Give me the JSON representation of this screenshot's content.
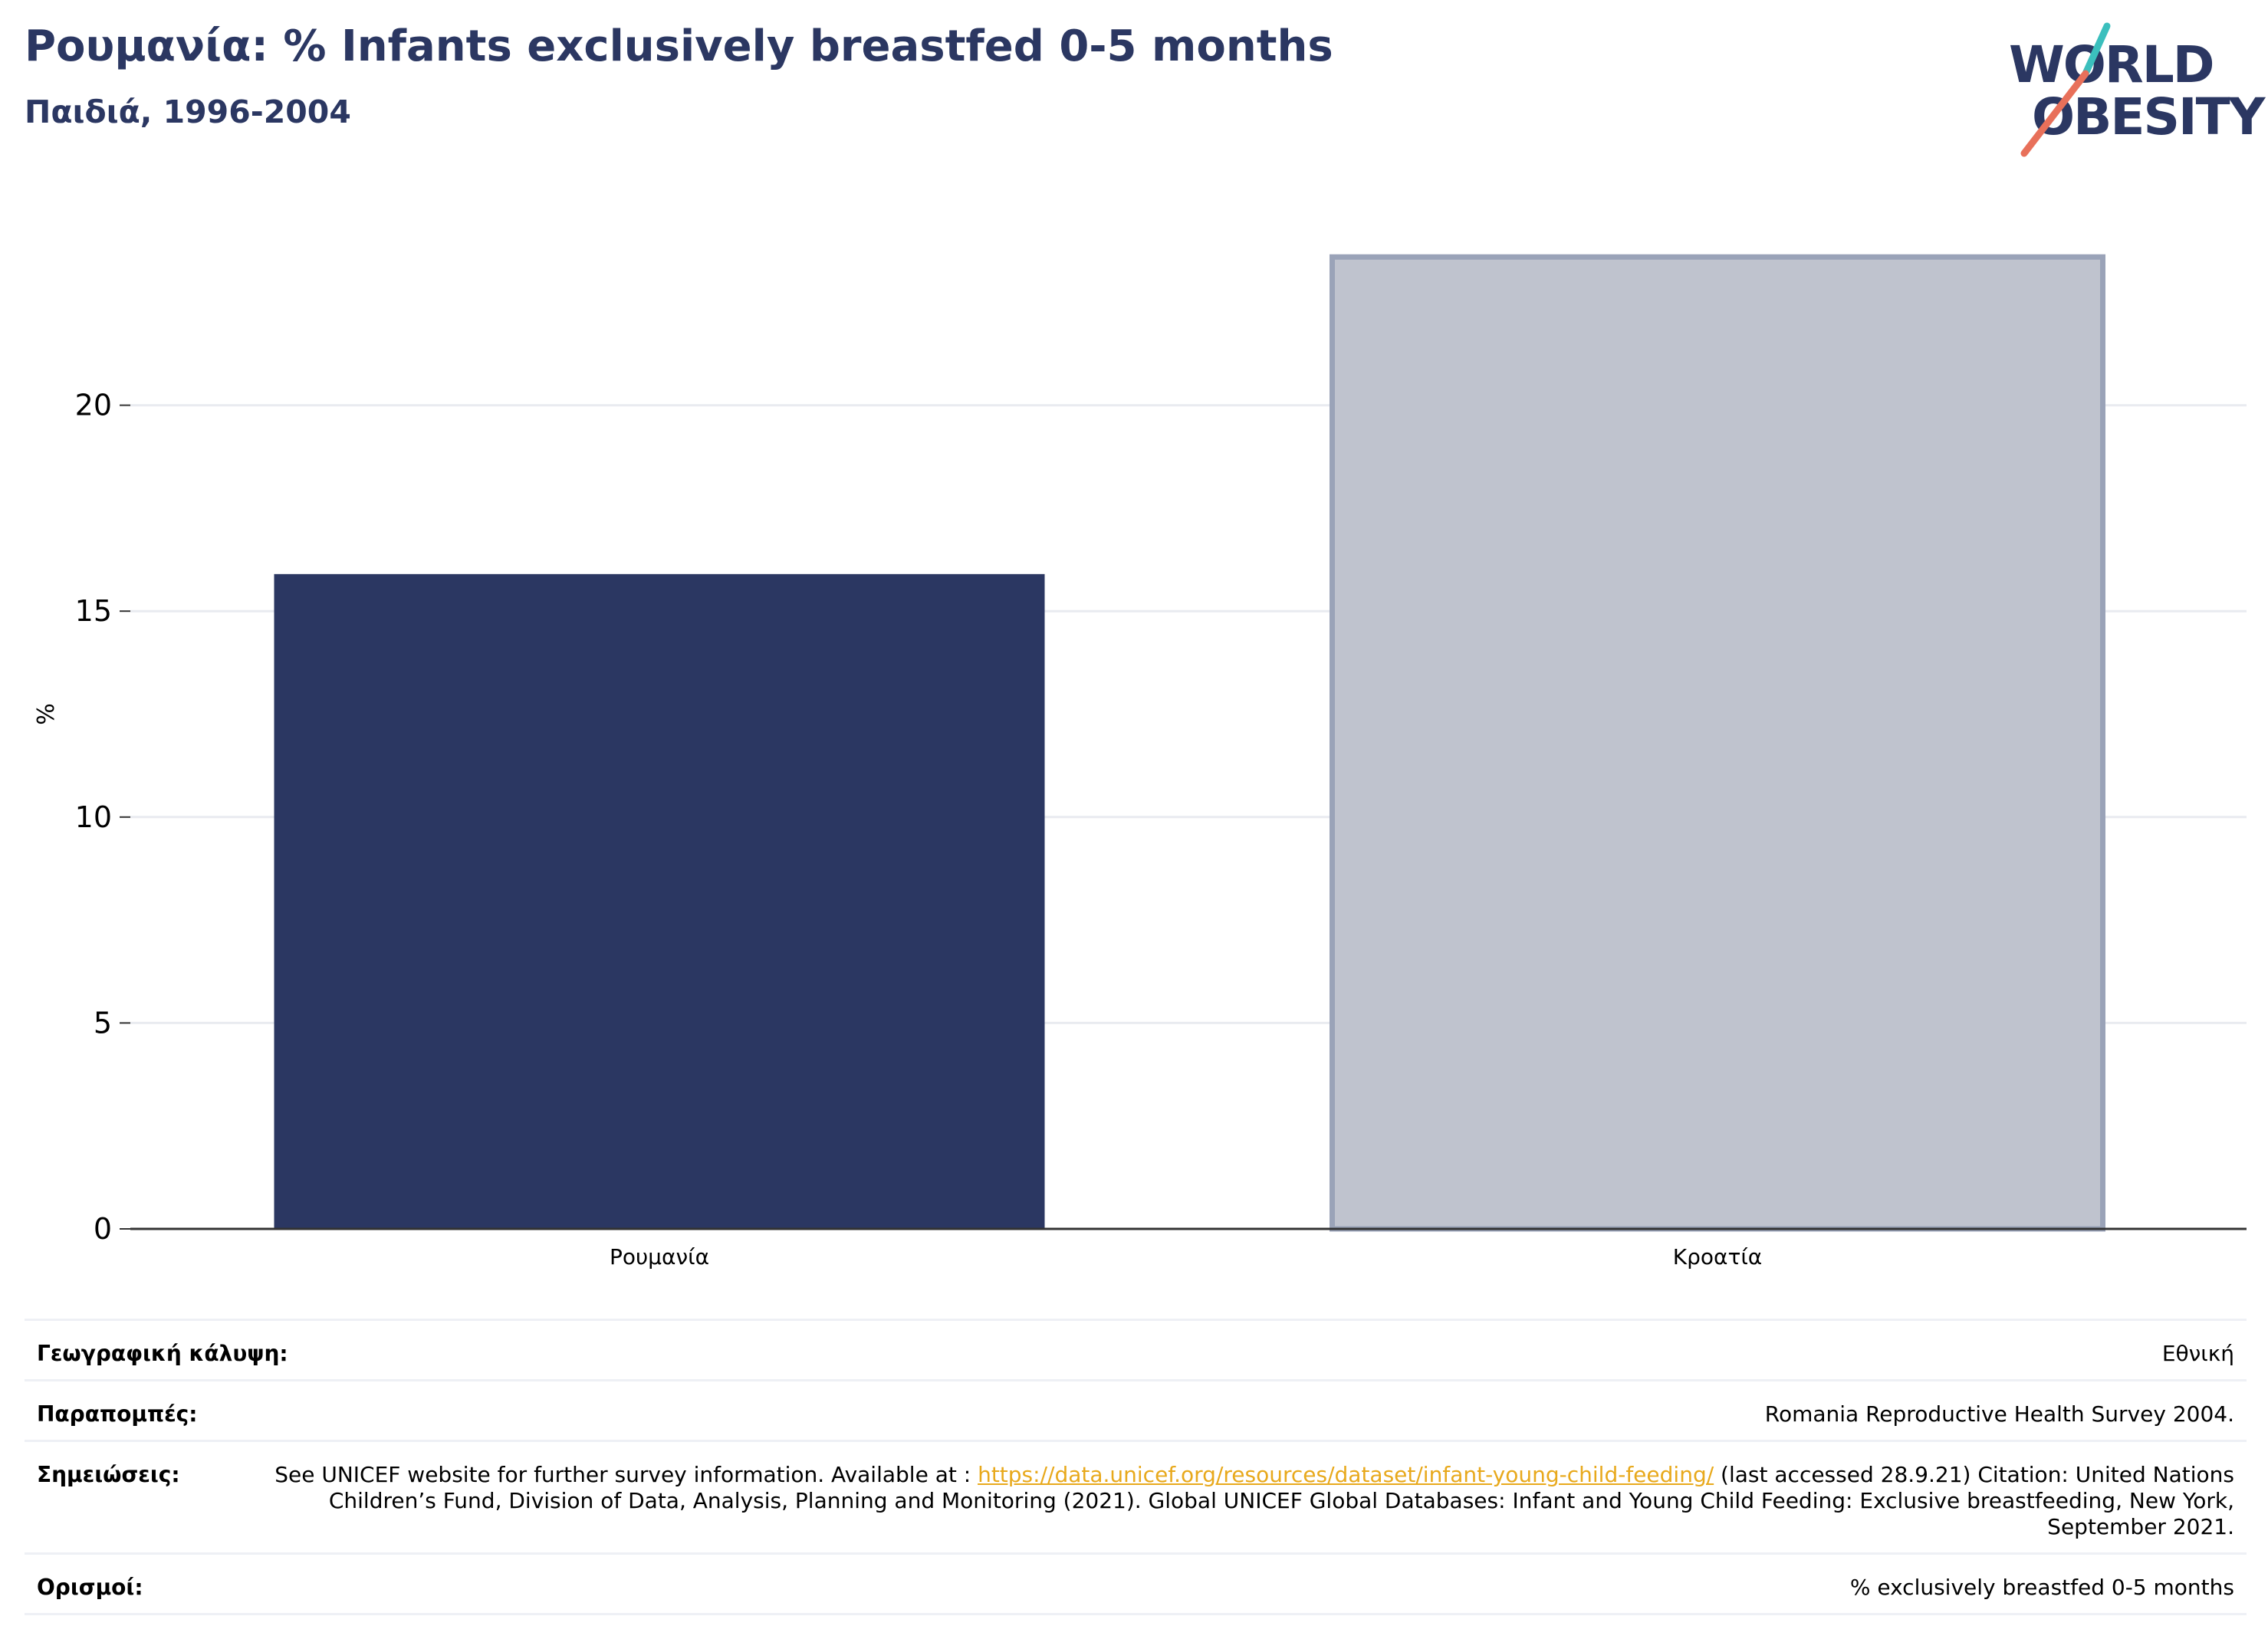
{
  "header": {
    "title": "Ρουμανία: % Infants exclusively breastfed 0-5 months",
    "subtitle": "Παιδιά, 1996-2004"
  },
  "logo": {
    "line1": "WORLD",
    "line2": "OBESITY",
    "colors": {
      "text": "#2b3762",
      "slash_top": "#3bbfbd",
      "slash_bottom": "#e8705a"
    }
  },
  "chart_data": {
    "type": "bar",
    "categories": [
      "Ρουμανία",
      "Κροατία"
    ],
    "values": [
      15.9,
      23.6
    ],
    "colors": [
      "#2b3762",
      "#bfc3ce"
    ],
    "highlight_index": 0,
    "ylabel": "%",
    "ylim": [
      0,
      25
    ],
    "yticks": [
      0,
      5,
      10,
      15,
      20
    ],
    "grid": true
  },
  "meta": {
    "coverage_label": "Γεωγραφική κάλυψη:",
    "coverage_value": "Εθνική",
    "refs_label": "Παραπομπές:",
    "refs_value": "Romania Reproductive Health Survey 2004.",
    "notes_label": "Σημειώσεις:",
    "notes_prefix": "See UNICEF website for further survey information. Available at : ",
    "notes_link": "https://data.unicef.org/resources/dataset/infant-young-child-feeding/",
    "notes_suffix": " (last accessed 28.9.21) Citation: United Nations Children’s Fund, Division of Data, Analysis, Planning and Monitoring (2021). Global UNICEF Global Databases: Infant and Young Child Feeding: Exclusive breastfeeding, New York, September 2021.",
    "defs_label": "Ορισμοί:",
    "defs_value": "% exclusively breastfed 0-5 months"
  }
}
